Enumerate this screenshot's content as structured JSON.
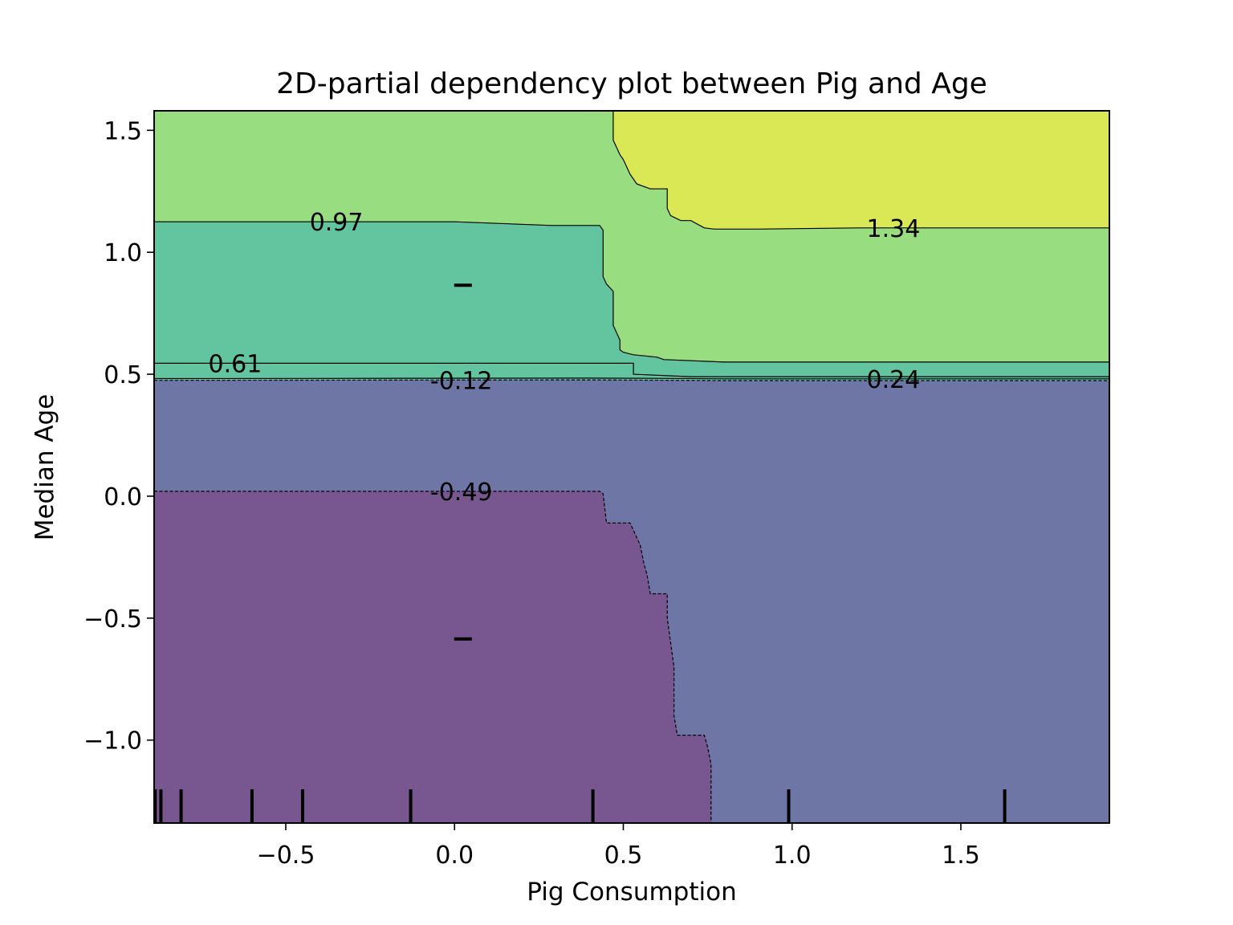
{
  "chart_data": {
    "type": "contour",
    "title": "2D-partial dependency plot between Pig and Age",
    "xlabel": "Pig Consumption",
    "ylabel": "Median Age",
    "xlim": [
      -0.89,
      1.94
    ],
    "ylim": [
      -1.34,
      1.58
    ],
    "x_ticks": [
      {
        "value": -0.5,
        "label": "−0.5"
      },
      {
        "value": 0.0,
        "label": "0.0"
      },
      {
        "value": 0.5,
        "label": "0.5"
      },
      {
        "value": 1.0,
        "label": "1.0"
      },
      {
        "value": 1.5,
        "label": "1.5"
      }
    ],
    "y_ticks": [
      {
        "value": 1.5,
        "label": "1.5"
      },
      {
        "value": 1.0,
        "label": "1.0"
      },
      {
        "value": 0.5,
        "label": "0.5"
      },
      {
        "value": 0.0,
        "label": "0.0"
      },
      {
        "value": -0.5,
        "label": "−0.5"
      },
      {
        "value": -1.0,
        "label": "−1.0"
      }
    ],
    "levels": [
      {
        "value": -0.49,
        "label": "-0.49",
        "dashed": true,
        "label_at": {
          "x": 0.02,
          "y": 0.02
        },
        "line": [
          [
            -0.89,
            0.02
          ],
          [
            -0.6,
            0.02
          ],
          [
            -0.3,
            0.02
          ],
          [
            0.0,
            0.02
          ],
          [
            0.3,
            0.02
          ],
          [
            0.43,
            0.02
          ],
          [
            0.44,
            0.01
          ],
          [
            0.45,
            -0.11
          ],
          [
            0.52,
            -0.11
          ],
          [
            0.53,
            -0.14
          ],
          [
            0.55,
            -0.2
          ],
          [
            0.56,
            -0.27
          ],
          [
            0.57,
            -0.32
          ],
          [
            0.58,
            -0.4
          ],
          [
            0.63,
            -0.4
          ],
          [
            0.63,
            -0.5
          ],
          [
            0.64,
            -0.6
          ],
          [
            0.65,
            -0.7
          ],
          [
            0.65,
            -0.8
          ],
          [
            0.65,
            -0.9
          ],
          [
            0.66,
            -0.98
          ],
          [
            0.74,
            -0.98
          ],
          [
            0.75,
            -1.03
          ],
          [
            0.76,
            -1.1
          ],
          [
            0.76,
            -1.34
          ]
        ]
      },
      {
        "value": -0.12,
        "label": "-0.12",
        "dashed": true,
        "label_at": {
          "x": 0.02,
          "y": 0.475
        },
        "line": [
          [
            -0.89,
            0.475
          ],
          [
            0.4,
            0.477
          ],
          [
            0.8,
            0.474
          ],
          [
            1.94,
            0.474
          ]
        ]
      },
      {
        "value": 0.24,
        "label": "0.24",
        "dashed": false,
        "label_at": {
          "x": 1.3,
          "y": 0.48
        },
        "line": [
          [
            -0.89,
            0.482
          ],
          [
            0.4,
            0.484
          ],
          [
            0.6,
            0.483
          ],
          [
            0.8,
            0.481
          ],
          [
            1.94,
            0.481
          ]
        ]
      },
      {
        "value": 0.61,
        "label": "0.61",
        "dashed": false,
        "label_at": {
          "x": -0.65,
          "y": 0.545
        },
        "line": [
          [
            -0.89,
            0.545
          ],
          [
            0.0,
            0.545
          ],
          [
            0.3,
            0.545
          ],
          [
            0.5,
            0.545
          ],
          [
            0.53,
            0.545
          ],
          [
            0.53,
            0.5
          ],
          [
            0.7,
            0.49
          ],
          [
            1.0,
            0.49
          ],
          [
            1.94,
            0.49
          ]
        ]
      },
      {
        "value": 0.97,
        "label": "0.97",
        "dashed": false,
        "label_at": {
          "x": -0.35,
          "y": 1.125
        },
        "line": [
          [
            -0.89,
            1.125
          ],
          [
            -0.5,
            1.125
          ],
          [
            0.0,
            1.125
          ],
          [
            0.29,
            1.11
          ],
          [
            0.43,
            1.11
          ],
          [
            0.44,
            1.09
          ],
          [
            0.44,
            0.9
          ],
          [
            0.45,
            0.87
          ],
          [
            0.47,
            0.84
          ],
          [
            0.47,
            0.7
          ],
          [
            0.48,
            0.67
          ],
          [
            0.49,
            0.64
          ],
          [
            0.49,
            0.6
          ],
          [
            0.5,
            0.59
          ],
          [
            0.53,
            0.58
          ],
          [
            0.6,
            0.57
          ],
          [
            0.62,
            0.56
          ],
          [
            0.8,
            0.55
          ],
          [
            1.2,
            0.55
          ],
          [
            1.94,
            0.55
          ]
        ]
      },
      {
        "value": 1.34,
        "label": "1.34",
        "dashed": false,
        "label_at": {
          "x": 1.3,
          "y": 1.1
        },
        "line": [
          [
            0.47,
            1.58
          ],
          [
            0.47,
            1.46
          ],
          [
            0.48,
            1.43
          ],
          [
            0.49,
            1.4
          ],
          [
            0.5,
            1.38
          ],
          [
            0.51,
            1.35
          ],
          [
            0.52,
            1.32
          ],
          [
            0.54,
            1.28
          ],
          [
            0.58,
            1.26
          ],
          [
            0.63,
            1.26
          ],
          [
            0.63,
            1.18
          ],
          [
            0.64,
            1.15
          ],
          [
            0.67,
            1.13
          ],
          [
            0.7,
            1.13
          ],
          [
            0.74,
            1.1
          ],
          [
            0.77,
            1.095
          ],
          [
            0.9,
            1.095
          ],
          [
            1.2,
            1.1
          ],
          [
            1.94,
            1.1
          ]
        ]
      }
    ],
    "regions": [
      {
        "color": "#98dd80"
      },
      {
        "color": "#63c59f"
      },
      {
        "color": "#6e76a6"
      },
      {
        "color": "#785690"
      },
      {
        "color": "#dbe855"
      }
    ],
    "deciles": [
      -0.887,
      -0.87,
      -0.81,
      -0.6,
      -0.45,
      -0.13,
      0.41,
      0.99,
      1.63
    ],
    "center_marks": [
      {
        "x": 0.025,
        "y": 0.865
      },
      {
        "x": 0.025,
        "y": -0.585
      }
    ]
  }
}
